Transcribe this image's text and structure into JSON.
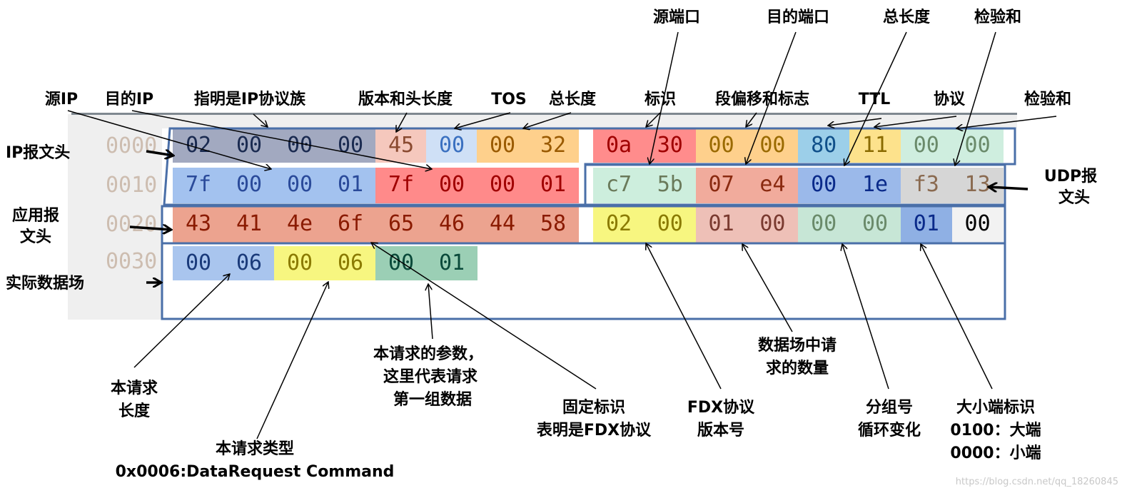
{
  "offsets": [
    "0000",
    "0010",
    "0020",
    "0030"
  ],
  "rows": [
    [
      "02",
      "00",
      "00",
      "00",
      "45",
      "00",
      "00",
      "32",
      "0a",
      "30",
      "00",
      "00",
      "80",
      "11",
      "00",
      "00"
    ],
    [
      "7f",
      "00",
      "00",
      "01",
      "7f",
      "00",
      "00",
      "01",
      "c7",
      "5b",
      "07",
      "e4",
      "00",
      "1e",
      "f3",
      "13"
    ],
    [
      "43",
      "41",
      "4e",
      "6f",
      "65",
      "46",
      "44",
      "58",
      "02",
      "00",
      "01",
      "00",
      "00",
      "00",
      "01",
      "00"
    ],
    [
      "00",
      "06",
      "00",
      "06",
      "00",
      "01"
    ]
  ],
  "segments": [
    {
      "row": 0,
      "from": 0,
      "to": 3,
      "bg": "#a2a9c0",
      "fg": "#1a2a50"
    },
    {
      "row": 0,
      "from": 4,
      "to": 4,
      "bg": "#f5c8bd",
      "fg": "#8a4a30"
    },
    {
      "row": 0,
      "from": 5,
      "to": 5,
      "bg": "#cfe0f6",
      "fg": "#3a70c0"
    },
    {
      "row": 0,
      "from": 6,
      "to": 7,
      "bg": "#fed08c",
      "fg": "#9a5a00"
    },
    {
      "row": 0,
      "from": 8,
      "to": 9,
      "bg": "#ff8c8c",
      "fg": "#a00000"
    },
    {
      "row": 0,
      "from": 10,
      "to": 11,
      "bg": "#fed08c",
      "fg": "#9a6a00"
    },
    {
      "row": 0,
      "from": 12,
      "to": 12,
      "bg": "#9ccfe9",
      "fg": "#10508a"
    },
    {
      "row": 0,
      "from": 13,
      "to": 13,
      "bg": "#fde28c",
      "fg": "#8a6a00"
    },
    {
      "row": 0,
      "from": 14,
      "to": 15,
      "bg": "#cfeedf",
      "fg": "#6a8a6a"
    },
    {
      "row": 1,
      "from": 0,
      "to": 3,
      "bg": "#a3c2ef",
      "fg": "#2a4a9a"
    },
    {
      "row": 1,
      "from": 4,
      "to": 7,
      "bg": "#ff8a8a",
      "fg": "#a00000"
    },
    {
      "row": 1,
      "from": 8,
      "to": 9,
      "bg": "#cdeedd",
      "fg": "#6a7a5a"
    },
    {
      "row": 1,
      "from": 10,
      "to": 11,
      "bg": "#f1ab9c",
      "fg": "#8a2a10"
    },
    {
      "row": 1,
      "from": 12,
      "to": 13,
      "bg": "#9bb9ea",
      "fg": "#0a2a8a"
    },
    {
      "row": 1,
      "from": 14,
      "to": 15,
      "bg": "#d6d6d6",
      "fg": "#8a6a50"
    },
    {
      "row": 2,
      "from": 0,
      "to": 7,
      "bg": "#eca38f",
      "fg": "#8a1a00"
    },
    {
      "row": 2,
      "from": 8,
      "to": 9,
      "bg": "#f7f680",
      "fg": "#8a7a00"
    },
    {
      "row": 2,
      "from": 10,
      "to": 11,
      "bg": "#eec0b7",
      "fg": "#7a3a30"
    },
    {
      "row": 2,
      "from": 12,
      "to": 13,
      "bg": "#c7e6d6",
      "fg": "#6a8a6a"
    },
    {
      "row": 2,
      "from": 14,
      "to": 14,
      "bg": "#8fb0e4",
      "fg": "#0a2a8a"
    },
    {
      "row": 2,
      "from": 15,
      "to": 15,
      "bg": "#f2f2f2",
      "fg": "#000000"
    },
    {
      "row": 3,
      "from": 0,
      "to": 1,
      "bg": "#a9c5ee",
      "fg": "#1a3a7a"
    },
    {
      "row": 3,
      "from": 2,
      "to": 3,
      "bg": "#f7f680",
      "fg": "#8a7a00"
    },
    {
      "row": 3,
      "from": 4,
      "to": 5,
      "bg": "#9bcfb5",
      "fg": "#0a4a3a"
    }
  ],
  "box_color": "#4a6fa8",
  "labels": {
    "src_port": "源端口",
    "dst_port": "目的端口",
    "udp_total_len": "总长度",
    "udp_checksum": "检验和",
    "src_ip": "源IP",
    "dst_ip": "目的IP",
    "ip_family": "指明是IP协议族",
    "version_hlen": "版本和头长度",
    "tos": "TOS",
    "ip_total_len": "总长度",
    "ident": "标识",
    "frag": "段偏移和标志",
    "ttl": "TTL",
    "protocol": "协议",
    "ip_checksum": "检验和",
    "ip_header": "IP报文头",
    "app_header": [
      "应用报",
      "文头"
    ],
    "data_field": "实际数据场",
    "udp_header": [
      "UDP报",
      "文头"
    ],
    "req_len": [
      "本请求",
      "长度"
    ],
    "req_type": [
      "本请求类型",
      "0x0006:DataRequest Command"
    ],
    "req_param": [
      "本请求的参数，",
      "这里代表请求",
      "第一组数据"
    ],
    "fixed_id": [
      "固定标识",
      "表明是FDX协议"
    ],
    "fdx_version": [
      "FDX协议",
      "版本号"
    ],
    "req_count": [
      "数据场中请",
      "求的数量"
    ],
    "seq": [
      "分组号",
      "循环变化"
    ],
    "endian": [
      "大小端标识",
      "0100：大端",
      "0000：小端"
    ]
  },
  "watermark": "https://blog.csdn.net/qq_18260845"
}
